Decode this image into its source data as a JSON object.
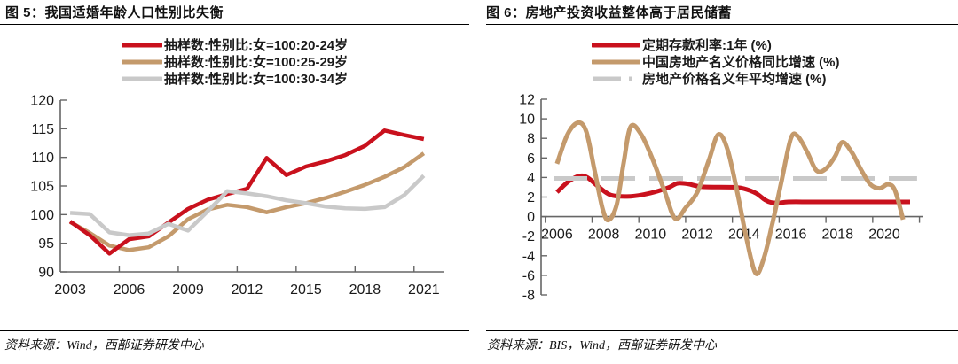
{
  "figures": [
    {
      "title": "图 5：我国适婚年龄人口性别比失衡",
      "source": "资料来源：Wind，西部证券研发中心"
    },
    {
      "title": "图 6：房地产投资收益整体高于居民储蓄",
      "source": "资料来源：BIS，Wind，西部证券研发中心"
    }
  ],
  "colors": {
    "accent_red": "#c9111d",
    "tan": "#c49a6c",
    "light_gray": "#c9c9c9",
    "axis": "#666666",
    "text": "#1a1a1a"
  },
  "chart_data": [
    {
      "type": "line",
      "title": "我国适婚年龄人口性别比失衡",
      "x": [
        2003,
        2004,
        2005,
        2006,
        2007,
        2008,
        2009,
        2010,
        2011,
        2012,
        2013,
        2014,
        2015,
        2016,
        2017,
        2018,
        2019,
        2020,
        2021
      ],
      "series": [
        {
          "name": "抽样数:性别比:女=100:20-24岁",
          "color": "#c9111d",
          "style": "solid",
          "values": [
            98.8,
            96.4,
            93.2,
            95.7,
            96.2,
            98.6,
            101.0,
            102.6,
            103.6,
            104.5,
            109.9,
            106.9,
            108.4,
            109.3,
            110.4,
            112.0,
            114.7,
            113.9,
            113.2
          ]
        },
        {
          "name": "抽样数:性别比:女=100:25-29岁",
          "color": "#c49a6c",
          "style": "solid",
          "values": [
            98.7,
            96.8,
            94.6,
            93.8,
            94.3,
            96.2,
            99.2,
            100.9,
            101.7,
            101.3,
            100.4,
            101.3,
            102.0,
            102.9,
            104.0,
            105.2,
            106.6,
            108.3,
            110.7
          ]
        },
        {
          "name": "抽样数:性别比:女=100:30-34岁",
          "color": "#c9c9c9",
          "style": "solid",
          "values": [
            100.3,
            100.1,
            96.9,
            96.4,
            96.7,
            98.4,
            97.2,
            100.6,
            104.1,
            103.7,
            103.2,
            102.5,
            102.0,
            101.4,
            101.1,
            101.0,
            101.3,
            103.4,
            106.8
          ]
        }
      ],
      "xlim": [
        2002.5,
        2022.0
      ],
      "ylim": [
        90,
        120
      ],
      "yticks": [
        90,
        95,
        100,
        105,
        110,
        115,
        120
      ],
      "xticks": [
        2003,
        2006,
        2009,
        2012,
        2015,
        2018,
        2021
      ],
      "xtick_marks": [
        2005.5,
        2008.5,
        2011.5,
        2014.5,
        2017.5,
        2020.5
      ],
      "grid": false,
      "legend_position": "top"
    },
    {
      "type": "line",
      "title": "房地产投资收益整体高于居民储蓄",
      "series": [
        {
          "name": "定期存款利率:1年 (%)",
          "color": "#c9111d",
          "style": "solid",
          "smooth": true,
          "x": [
            2006,
            2006.5,
            2006.95,
            2007.3,
            2007.8,
            2008.3,
            2009,
            2009.7,
            2010.3,
            2010.8,
            2011.15,
            2011.6,
            2012.2,
            2013.5,
            2014,
            2014.5,
            2014.9,
            2015.15,
            2015.5,
            2015.9,
            2017,
            2019,
            2021.1
          ],
          "values": [
            2.5,
            3.6,
            4.15,
            4.0,
            3.0,
            2.2,
            2.05,
            2.25,
            2.6,
            3.0,
            3.4,
            3.35,
            3.05,
            3.0,
            2.85,
            2.4,
            1.7,
            1.45,
            1.4,
            1.5,
            1.5,
            1.5,
            1.5
          ]
        },
        {
          "name": "中国房地产名义价格同比增速 (%)",
          "color": "#c49a6c",
          "style": "solid",
          "smooth": true,
          "x": [
            2006,
            2006.45,
            2006.9,
            2007.25,
            2007.6,
            2007.95,
            2008.2,
            2008.55,
            2008.85,
            2009.15,
            2009.6,
            2010.1,
            2010.6,
            2011.05,
            2011.5,
            2012,
            2012.5,
            2012.9,
            2013.3,
            2013.75,
            2014.1,
            2014.5,
            2014.85,
            2015.2,
            2015.6,
            2016,
            2016.3,
            2016.7,
            2017.1,
            2017.5,
            2017.9,
            2018.2,
            2018.6,
            2019,
            2019.4,
            2019.8,
            2020.15,
            2020.45,
            2020.8
          ],
          "values": [
            5.4,
            8.4,
            9.6,
            8.7,
            4.8,
            0.8,
            -0.35,
            1.2,
            5.5,
            9.2,
            8.4,
            5.8,
            2.6,
            -0.2,
            0.9,
            2.5,
            5.8,
            8.4,
            6.8,
            2.0,
            -2.2,
            -5.8,
            -4.2,
            -0.8,
            3.6,
            8.0,
            8.2,
            6.6,
            4.7,
            4.9,
            6.2,
            7.6,
            6.6,
            4.8,
            3.3,
            2.9,
            3.3,
            2.7,
            -0.3
          ]
        },
        {
          "name": "房地产价格名义年平均增速 (%)",
          "color": "#c9c9c9",
          "style": "dashed",
          "smooth": false,
          "x": [
            2005.85,
            2021.4
          ],
          "values": [
            3.9,
            3.9
          ]
        }
      ],
      "xlim": [
        2005.32,
        2021.63
      ],
      "ylim": [
        -8,
        12
      ],
      "yticks": [
        -8,
        -6,
        -4,
        -2,
        0,
        2,
        4,
        6,
        8,
        10,
        12
      ],
      "xticks": [
        2006,
        2008,
        2010,
        2012,
        2014,
        2016,
        2018,
        2020
      ],
      "xtick_marks": [
        2005.5,
        2007.5,
        2009.5,
        2011.5,
        2013.5,
        2015.5,
        2017.5,
        2019.5,
        2021.5
      ],
      "x_axis_at_zero": true,
      "grid": false,
      "legend_position": "top"
    }
  ]
}
